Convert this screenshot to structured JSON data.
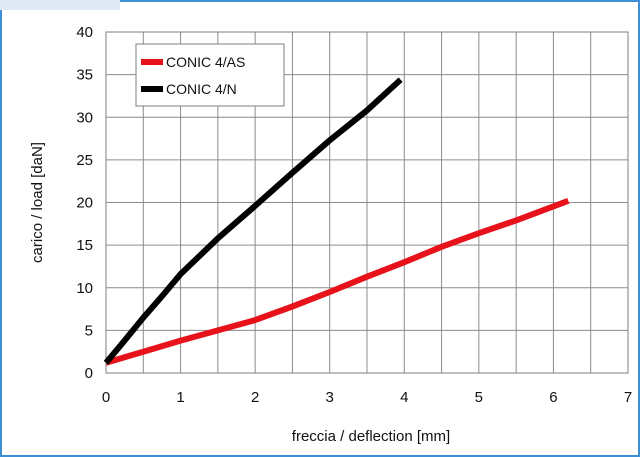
{
  "chart_data": {
    "type": "line",
    "title": "",
    "xlabel": "freccia / deflection [mm]",
    "ylabel": "carico / load [daN]",
    "xlim": [
      0,
      7
    ],
    "ylim": [
      0,
      40
    ],
    "xticks": [
      0,
      1,
      2,
      3,
      4,
      5,
      6,
      7
    ],
    "yticks": [
      0,
      5,
      10,
      15,
      20,
      25,
      30,
      35,
      40
    ],
    "x_minor_step": 0.5,
    "y_major_step": 5,
    "grid": true,
    "legend_position": "top-left",
    "series": [
      {
        "name": "CONIC 4/AS",
        "color": "#e8121b",
        "points": [
          [
            0,
            1.2
          ],
          [
            0.5,
            2.5
          ],
          [
            1,
            3.8
          ],
          [
            1.5,
            5.0
          ],
          [
            2,
            6.2
          ],
          [
            2.5,
            7.8
          ],
          [
            3,
            9.5
          ],
          [
            3.5,
            11.3
          ],
          [
            4,
            13.0
          ],
          [
            4.5,
            14.8
          ],
          [
            5,
            16.4
          ],
          [
            5.5,
            17.9
          ],
          [
            6.2,
            20.2
          ]
        ]
      },
      {
        "name": "CONIC 4/N",
        "color": "#000000",
        "points": [
          [
            0,
            1.2
          ],
          [
            0.25,
            3.8
          ],
          [
            0.5,
            6.5
          ],
          [
            0.75,
            9.0
          ],
          [
            1,
            11.6
          ],
          [
            1.5,
            15.8
          ],
          [
            2,
            19.6
          ],
          [
            2.5,
            23.5
          ],
          [
            3,
            27.3
          ],
          [
            3.5,
            30.8
          ],
          [
            3.95,
            34.4
          ]
        ]
      }
    ]
  }
}
